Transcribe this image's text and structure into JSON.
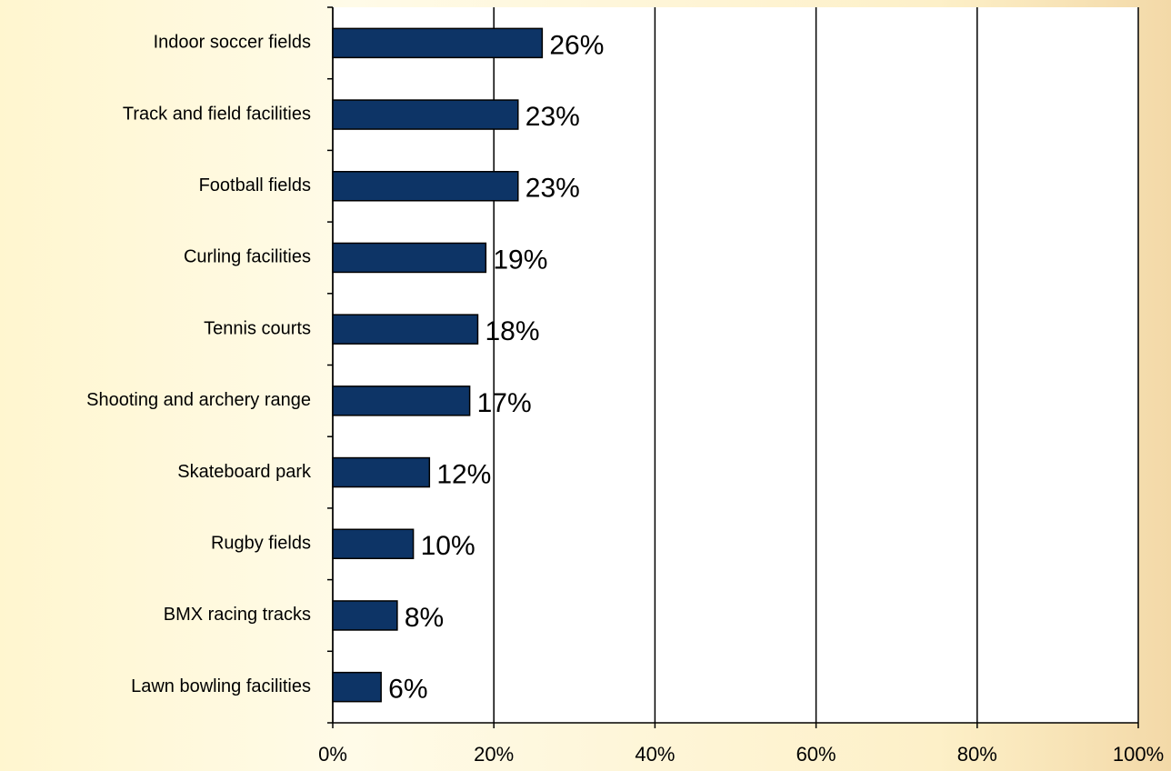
{
  "chart_data": {
    "type": "hbar",
    "categories": [
      "Indoor soccer fields",
      "Track and field facilities",
      "Football fields",
      "Curling facilities",
      "Tennis courts",
      "Shooting and archery range",
      "Skateboard park",
      "Rugby fields",
      "BMX racing tracks",
      "Lawn bowling facilities"
    ],
    "values": [
      26,
      23,
      23,
      19,
      18,
      17,
      12,
      10,
      8,
      6
    ],
    "value_labels": [
      "26%",
      "23%",
      "23%",
      "19%",
      "18%",
      "17%",
      "12%",
      "10%",
      "8%",
      "6%"
    ],
    "color": "#0d3466",
    "xlim": [
      0,
      100
    ],
    "xticks": [
      {
        "value": 0,
        "label": "0%"
      },
      {
        "value": 20,
        "label": "20%"
      },
      {
        "value": 40,
        "label": "40%"
      },
      {
        "value": 60,
        "label": "60%"
      },
      {
        "value": 80,
        "label": "80%"
      },
      {
        "value": 100,
        "label": "100%"
      }
    ],
    "grid": true
  }
}
